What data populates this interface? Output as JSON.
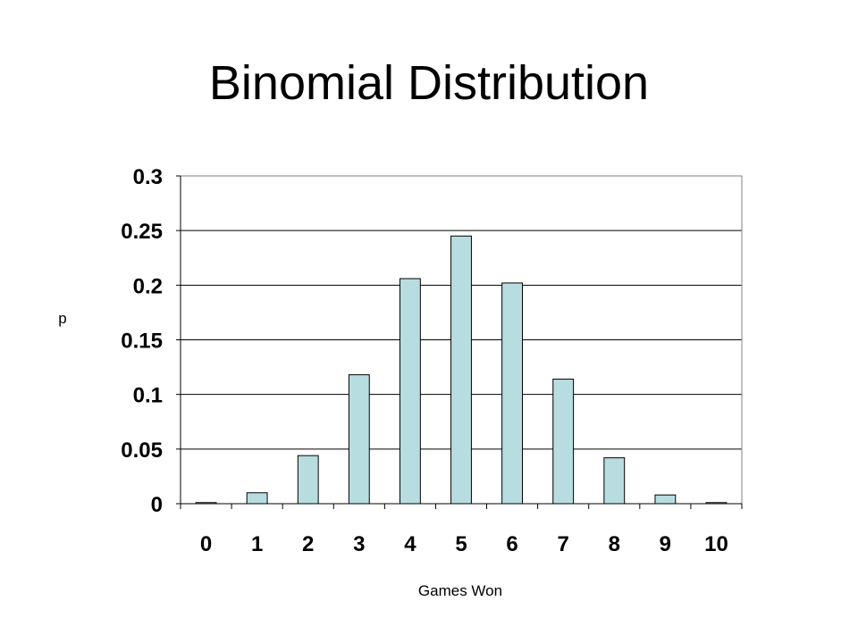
{
  "chart_data": {
    "type": "bar",
    "title": "Binomial Distribution",
    "xlabel": "Games Won",
    "ylabel": "p",
    "categories": [
      "0",
      "1",
      "2",
      "3",
      "4",
      "5",
      "6",
      "7",
      "8",
      "9",
      "10"
    ],
    "values": [
      0.001,
      0.01,
      0.044,
      0.118,
      0.206,
      0.245,
      0.202,
      0.114,
      0.042,
      0.008,
      0.001
    ],
    "ylim": [
      0,
      0.3
    ],
    "yticks": [
      0,
      0.05,
      0.1,
      0.15,
      0.2,
      0.25,
      0.3
    ],
    "ytick_labels": [
      "0",
      "0.05",
      "0.1",
      "0.15",
      "0.2",
      "0.25",
      "0.3"
    ],
    "grid": true,
    "legend": "none",
    "bar_color": "#b8dde0",
    "bar_edge_color": "#000000"
  }
}
